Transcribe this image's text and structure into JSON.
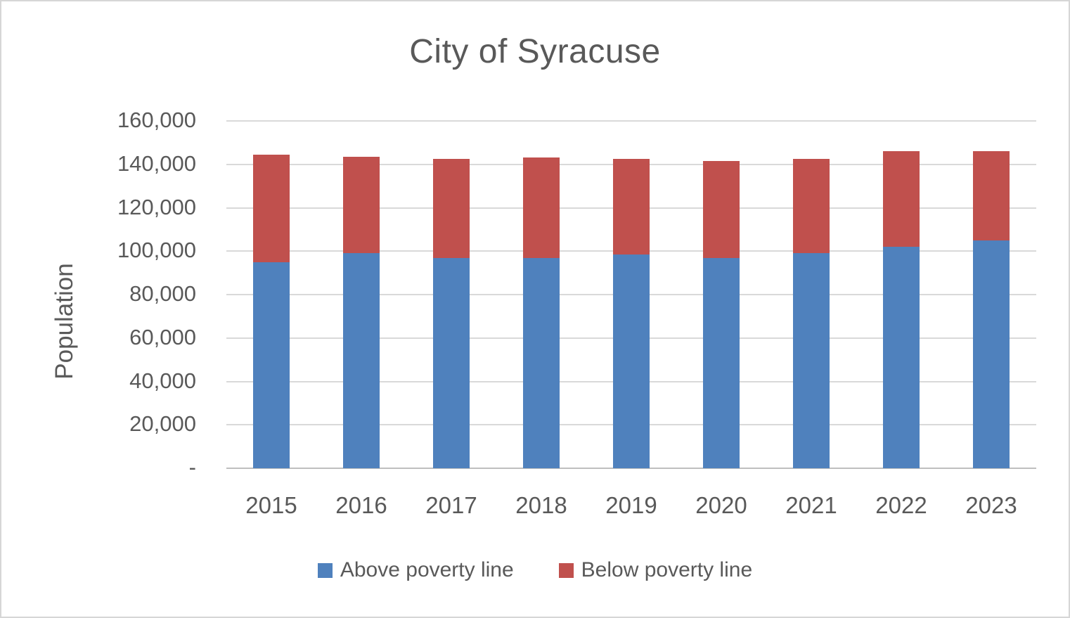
{
  "chart_data": {
    "type": "bar",
    "stacked": true,
    "title": "City of Syracuse",
    "xlabel": "",
    "ylabel": "Population",
    "categories": [
      "2015",
      "2016",
      "2017",
      "2018",
      "2019",
      "2020",
      "2021",
      "2022",
      "2023"
    ],
    "series": [
      {
        "name": "Above poverty line",
        "color": "#4F81BD",
        "values": [
          95000,
          99000,
          97000,
          97000,
          98500,
          97000,
          99000,
          102000,
          105000
        ]
      },
      {
        "name": "Below poverty line",
        "color": "#C0504D",
        "values": [
          49500,
          44500,
          45500,
          46000,
          44000,
          44500,
          43500,
          44000,
          41000
        ]
      }
    ],
    "stack_totals": [
      144500,
      143500,
      142500,
      143000,
      142500,
      141500,
      142500,
      146000,
      146000
    ],
    "ylim": [
      0,
      160000
    ],
    "ytick_step": 20000,
    "ytick_labels_top_to_bottom": [
      "160,000",
      "140,000",
      "120,000",
      "100,000",
      "80,000",
      "60,000",
      "40,000",
      "20,000",
      "-"
    ],
    "grid": true,
    "gridlines": "horizontal",
    "legend_position": "bottom"
  },
  "colors": {
    "above_series": "#4F81BD",
    "below_series": "#C0504D",
    "text": "#595959",
    "gridline": "#D9D9D9",
    "axis_line": "#BFBFBF",
    "border": "#D6D6D6",
    "background": "#FFFFFF"
  }
}
